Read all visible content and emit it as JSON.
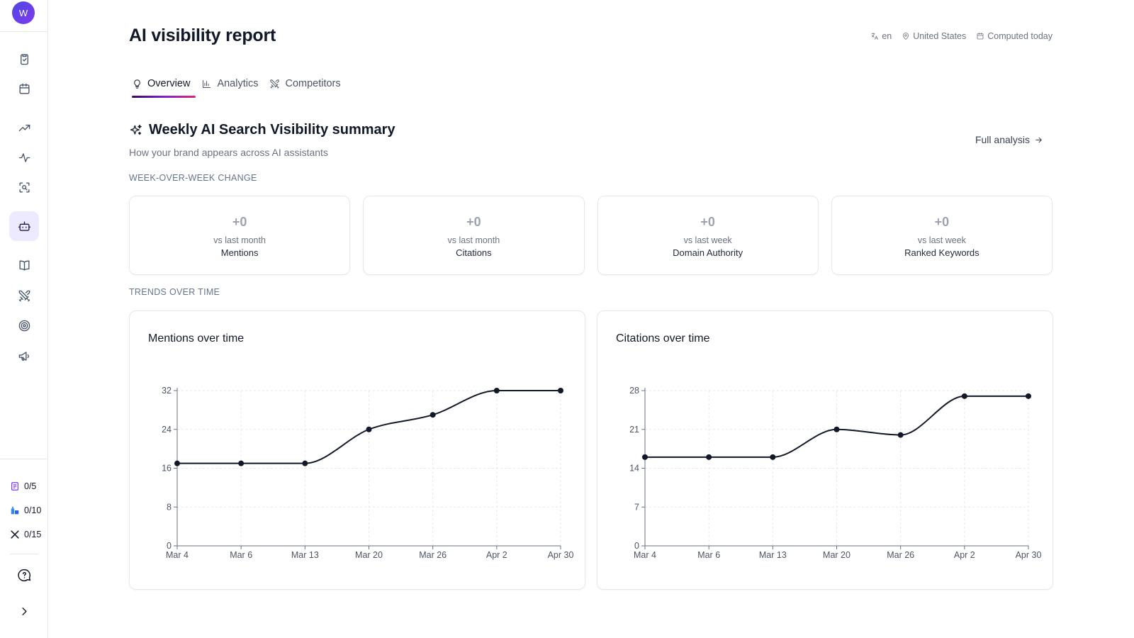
{
  "sidebar": {
    "avatar_initial": "W",
    "nav_items": [
      {
        "name": "tasks",
        "icon": "clipboard-check-icon",
        "active": false
      },
      {
        "name": "calendar",
        "icon": "calendar-icon",
        "active": false
      },
      {
        "name": "trends",
        "icon": "trending-up-icon",
        "active": false
      },
      {
        "name": "activity",
        "icon": "activity-icon",
        "active": false
      },
      {
        "name": "scan",
        "icon": "scan-search-icon",
        "active": false
      },
      {
        "name": "ai-visibility",
        "icon": "bot-icon",
        "active": true
      },
      {
        "name": "library",
        "icon": "book-open-icon",
        "active": false
      },
      {
        "name": "competitors",
        "icon": "swords-icon",
        "active": false
      },
      {
        "name": "targets",
        "icon": "target-icon",
        "active": false
      },
      {
        "name": "campaigns",
        "icon": "megaphone-icon",
        "active": false
      }
    ],
    "quotas": [
      {
        "icon": "article-icon",
        "value": "0/5"
      },
      {
        "icon": "building-icon",
        "value": "0/10"
      },
      {
        "icon": "x-logo-icon",
        "value": "0/15"
      }
    ],
    "help_icon": "help-circle-icon",
    "expand_icon": "chevron-right-icon"
  },
  "header": {
    "title": "AI visibility report",
    "language": "en",
    "location": "United States",
    "computed": "Computed today"
  },
  "tabs": [
    {
      "label": "Overview",
      "icon": "lightbulb-icon",
      "active": true
    },
    {
      "label": "Analytics",
      "icon": "bar-chart-icon",
      "active": false
    },
    {
      "label": "Competitors",
      "icon": "swords-icon",
      "active": false
    }
  ],
  "summary": {
    "title": "Weekly AI Search Visibility summary",
    "subtitle": "How your brand appears across AI assistants",
    "full_analysis_label": "Full analysis"
  },
  "sections": {
    "week_change": "WEEK-OVER-WEEK CHANGE",
    "trends": "TRENDS OVER TIME"
  },
  "metrics": [
    {
      "value": "+0",
      "period": "vs last month",
      "label": "Mentions"
    },
    {
      "value": "+0",
      "period": "vs last month",
      "label": "Citations"
    },
    {
      "value": "+0",
      "period": "vs last week",
      "label": "Domain Authority"
    },
    {
      "value": "+0",
      "period": "vs last week",
      "label": "Ranked Keywords"
    }
  ],
  "chart_data": [
    {
      "type": "line",
      "title": "Mentions over time",
      "categories": [
        "Mar 4",
        "Mar 6",
        "Mar 13",
        "Mar 20",
        "Mar 26",
        "Apr 2",
        "Apr 30"
      ],
      "values": [
        17,
        17,
        17,
        24,
        27,
        32,
        32
      ],
      "yticks": [
        0,
        8,
        16,
        24,
        32
      ],
      "ylim": [
        0,
        32
      ],
      "grid": true,
      "color": "#111827"
    },
    {
      "type": "line",
      "title": "Citations over time",
      "categories": [
        "Mar 4",
        "Mar 6",
        "Mar 13",
        "Mar 20",
        "Mar 26",
        "Apr 2",
        "Apr 30"
      ],
      "values": [
        16,
        16,
        16,
        21,
        20,
        27,
        27
      ],
      "yticks": [
        0,
        7,
        14,
        21,
        28
      ],
      "ylim": [
        0,
        28
      ],
      "grid": true,
      "color": "#111827"
    }
  ]
}
